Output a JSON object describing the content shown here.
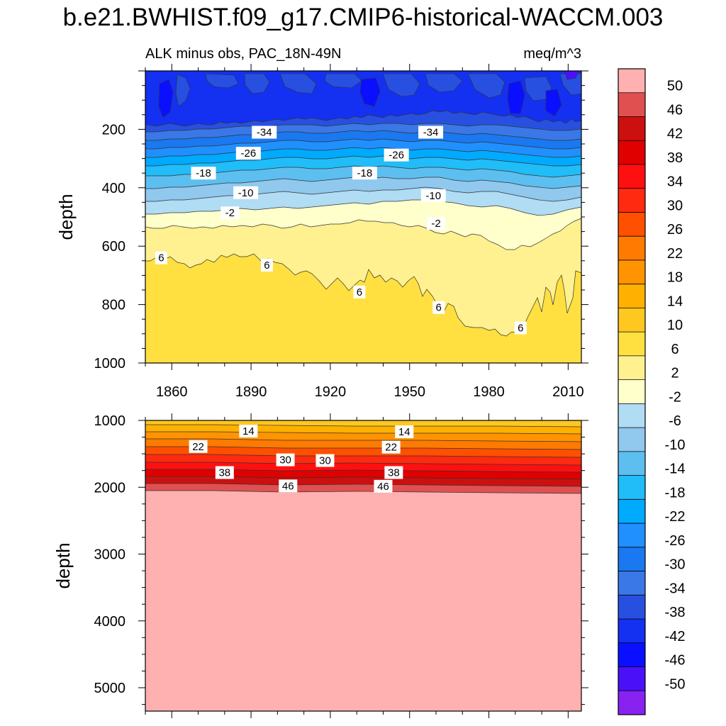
{
  "title": "b.e21.BWHIST.f09_g17.CMIP6-historical-WACCM.003",
  "chart_data": [
    {
      "type": "heatmap",
      "subtitle_left": "ALK minus obs, PAC_18N-49N",
      "subtitle_right": "meq/m^3",
      "ylabel": "depth",
      "xlabel": "",
      "xlim": [
        1850,
        2015
      ],
      "ylim": [
        1000,
        0
      ],
      "xticks": [
        "1860",
        "1890",
        "1920",
        "1950",
        "1980",
        "2010"
      ],
      "yticks": [
        "200",
        "400",
        "600",
        "800",
        "1000"
      ],
      "xtick_values": [
        1860,
        1890,
        1920,
        1950,
        1980,
        2010
      ],
      "ytick_values": [
        200,
        400,
        600,
        800,
        1000
      ],
      "contour_labels": [
        {
          "text": "-34",
          "year": 1895,
          "depth": 210
        },
        {
          "text": "-34",
          "year": 1958,
          "depth": 210
        },
        {
          "text": "-26",
          "year": 1889,
          "depth": 282
        },
        {
          "text": "-26",
          "year": 1945,
          "depth": 288
        },
        {
          "text": "-18",
          "year": 1872,
          "depth": 350
        },
        {
          "text": "-18",
          "year": 1933,
          "depth": 350
        },
        {
          "text": "-10",
          "year": 1888,
          "depth": 417
        },
        {
          "text": "-10",
          "year": 1959,
          "depth": 427
        },
        {
          "text": "-2",
          "year": 1882,
          "depth": 486
        },
        {
          "text": "-2",
          "year": 1960,
          "depth": 522
        },
        {
          "text": "6",
          "year": 1856,
          "depth": 640
        },
        {
          "text": "6",
          "year": 1896,
          "depth": 665
        },
        {
          "text": "6",
          "year": 1931,
          "depth": 757
        },
        {
          "text": "6",
          "year": 1961,
          "depth": 810
        },
        {
          "text": "6",
          "year": 1992,
          "depth": 880
        }
      ]
    },
    {
      "type": "heatmap",
      "ylabel": "depth",
      "xlabel": "",
      "xlim": [
        1850,
        2015
      ],
      "ylim": [
        5350,
        1000
      ],
      "yticks": [
        "1000",
        "2000",
        "3000",
        "4000",
        "5000"
      ],
      "ytick_values": [
        1000,
        2000,
        3000,
        4000,
        5000
      ],
      "contour_labels": [
        {
          "text": "14",
          "year": 1889,
          "depth": 1160
        },
        {
          "text": "14",
          "year": 1948,
          "depth": 1170
        },
        {
          "text": "22",
          "year": 1870,
          "depth": 1390
        },
        {
          "text": "22",
          "year": 1943,
          "depth": 1400
        },
        {
          "text": "30",
          "year": 1903,
          "depth": 1590
        },
        {
          "text": "30",
          "year": 1918,
          "depth": 1600
        },
        {
          "text": "38",
          "year": 1880,
          "depth": 1780
        },
        {
          "text": "38",
          "year": 1944,
          "depth": 1780
        },
        {
          "text": "46",
          "year": 1904,
          "depth": 1980
        },
        {
          "text": "46",
          "year": 1940,
          "depth": 1985
        }
      ]
    }
  ],
  "colorbar": {
    "labels": [
      "50",
      "46",
      "42",
      "38",
      "34",
      "30",
      "26",
      "22",
      "18",
      "14",
      "10",
      "6",
      "2",
      "-2",
      "-6",
      "-10",
      "-14",
      "-18",
      "-22",
      "-26",
      "-30",
      "-34",
      "-38",
      "-42",
      "-46",
      "-50"
    ],
    "colors": [
      "#FFB0B0",
      "#E05050",
      "#CC1010",
      "#E00000",
      "#FF1010",
      "#FF2A10",
      "#FF5000",
      "#FF7A00",
      "#FF9400",
      "#FFB000",
      "#FFC820",
      "#FFE040",
      "#FFF090",
      "#FFFFCC",
      "#B0DCF4",
      "#90C8EE",
      "#5CBFF0",
      "#20BDF8",
      "#00AAFF",
      "#2090FF",
      "#1A78F0",
      "#3A78E8",
      "#2850E0",
      "#1430F0",
      "#0A10FF",
      "#4A10F8",
      "#8822F0"
    ]
  }
}
